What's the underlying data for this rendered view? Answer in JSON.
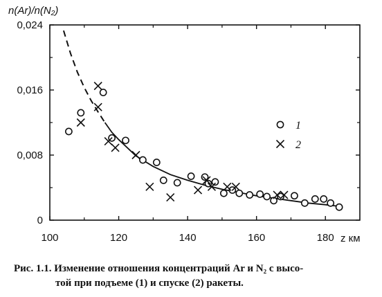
{
  "chart_data": {
    "type": "scatter",
    "ylabel": "n(Ar)/n(N₂)",
    "xlabel": "z км",
    "xlim": [
      100,
      190
    ],
    "ylim": [
      0,
      0.024
    ],
    "x_ticks": [
      100,
      120,
      140,
      160,
      180
    ],
    "x_tick_labels": [
      "100",
      "120",
      "140",
      "160",
      "180"
    ],
    "y_ticks": [
      0,
      0.008,
      0.016,
      0.024
    ],
    "y_tick_labels": [
      "0",
      "0,008",
      "0,016",
      "0,024"
    ],
    "grid": false,
    "legend_position": "right",
    "series": [
      {
        "name": "1",
        "marker": "circle",
        "points": [
          [
            105.5,
            0.0109
          ],
          [
            109,
            0.0132
          ],
          [
            115.5,
            0.0157
          ],
          [
            118,
            0.0101
          ],
          [
            122,
            0.0098
          ],
          [
            127,
            0.0074
          ],
          [
            131,
            0.0071
          ],
          [
            133,
            0.0049
          ],
          [
            137,
            0.0046
          ],
          [
            141,
            0.0054
          ],
          [
            145,
            0.0053
          ],
          [
            146,
            0.0045
          ],
          [
            148,
            0.0047
          ],
          [
            150.5,
            0.0033
          ],
          [
            153,
            0.0037
          ],
          [
            155,
            0.0033
          ],
          [
            158,
            0.0031
          ],
          [
            161,
            0.0032
          ],
          [
            163,
            0.0029
          ],
          [
            165,
            0.0024
          ],
          [
            167,
            0.0029
          ],
          [
            171,
            0.003
          ],
          [
            174,
            0.0021
          ],
          [
            177,
            0.0026
          ],
          [
            179.5,
            0.0026
          ],
          [
            181.5,
            0.0021
          ],
          [
            184,
            0.0016
          ]
        ]
      },
      {
        "name": "2",
        "marker": "cross",
        "points": [
          [
            109,
            0.012
          ],
          [
            114,
            0.0165
          ],
          [
            114,
            0.0139
          ],
          [
            117,
            0.0097
          ],
          [
            119,
            0.0089
          ],
          [
            125,
            0.008
          ],
          [
            129,
            0.0041
          ],
          [
            135,
            0.0028
          ],
          [
            143,
            0.0037
          ],
          [
            145.5,
            0.0049
          ],
          [
            147,
            0.0041
          ],
          [
            151.5,
            0.0041
          ],
          [
            154,
            0.0041
          ],
          [
            166,
            0.0031
          ],
          [
            168,
            0.0031
          ]
        ]
      }
    ],
    "fit_curve": {
      "style": "dashed-then-solid",
      "points": [
        [
          104,
          0.0233
        ],
        [
          106,
          0.0205
        ],
        [
          108,
          0.0182
        ],
        [
          110,
          0.0163
        ],
        [
          112,
          0.0147
        ],
        [
          114,
          0.0133
        ],
        [
          116,
          0.012
        ],
        [
          118,
          0.0108
        ],
        [
          120,
          0.0099
        ],
        [
          125,
          0.0079
        ],
        [
          130,
          0.0066
        ],
        [
          135,
          0.0056
        ],
        [
          140,
          0.0049
        ],
        [
          145,
          0.0043
        ],
        [
          150,
          0.0038
        ],
        [
          155,
          0.0034
        ],
        [
          160,
          0.003
        ],
        [
          165,
          0.0027
        ],
        [
          170,
          0.0024
        ],
        [
          175,
          0.0021
        ],
        [
          180,
          0.0019
        ],
        [
          184,
          0.0017
        ]
      ],
      "dash_until_x": 116
    }
  },
  "caption": {
    "line1": "Рис. 1.1. Изменение отношения концентраций Ar и N₂ с высо-",
    "line2": "той при подъеме (1) и спуске (2) ракеты."
  }
}
